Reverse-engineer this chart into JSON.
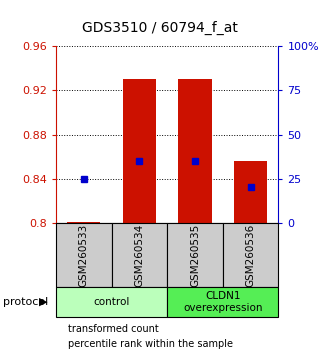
{
  "title": "GDS3510 / 60794_f_at",
  "samples": [
    "GSM260533",
    "GSM260534",
    "GSM260535",
    "GSM260536"
  ],
  "groups": [
    {
      "label": "control",
      "color": "#bbffbb",
      "start": 0,
      "end": 1
    },
    {
      "label": "CLDN1\noverexpression",
      "color": "#55ee55",
      "start": 2,
      "end": 3
    }
  ],
  "ylim_left": [
    0.8,
    0.96
  ],
  "ylim_right": [
    0,
    100
  ],
  "yticks_left": [
    0.8,
    0.84,
    0.88,
    0.92,
    0.96
  ],
  "yticks_right": [
    0,
    25,
    50,
    75,
    100
  ],
  "ytick_right_labels": [
    "0",
    "25",
    "50",
    "75",
    "100%"
  ],
  "bar_bottom": 0.8,
  "red_bar_tops": [
    0.801,
    0.93,
    0.93,
    0.856
  ],
  "blue_dot_vals": [
    0.84,
    0.856,
    0.856,
    0.833
  ],
  "bar_color": "#cc1100",
  "dot_color": "#0000cc",
  "axis_left_color": "#cc1100",
  "axis_right_color": "#0000cc",
  "sample_bg_color": "#cccccc",
  "control_color": "#bbffbb",
  "cldn1_color": "#55ee55",
  "legend_red_label": "transformed count",
  "legend_blue_label": "percentile rank within the sample",
  "protocol_label": "protocol",
  "bar_width": 0.6
}
